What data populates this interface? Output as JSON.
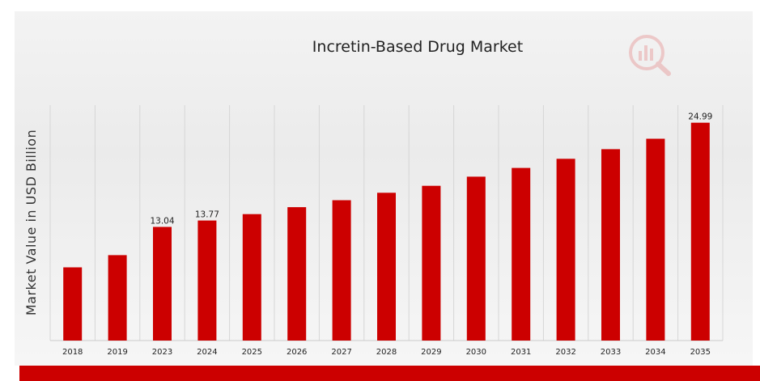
{
  "chart_data": {
    "type": "bar",
    "title": "Incretin-Based Drug Market",
    "xlabel": "",
    "ylabel": "Market Value in USD Billion",
    "categories": [
      "2018",
      "2019",
      "2023",
      "2024",
      "2025",
      "2026",
      "2027",
      "2028",
      "2029",
      "2030",
      "2031",
      "2032",
      "2033",
      "2034",
      "2035"
    ],
    "values": [
      8.4,
      9.8,
      13.04,
      13.77,
      14.5,
      15.3,
      16.1,
      16.95,
      17.75,
      18.8,
      19.8,
      20.85,
      21.95,
      23.15,
      24.99
    ],
    "data_labels": [
      {
        "category": "2023",
        "text": "13.04"
      },
      {
        "category": "2024",
        "text": "13.77"
      },
      {
        "category": "2035",
        "text": "24.99"
      }
    ],
    "ylim": [
      0,
      27
    ],
    "grid": "vertical",
    "legend": "none",
    "bar_color": "#cc0000"
  }
}
